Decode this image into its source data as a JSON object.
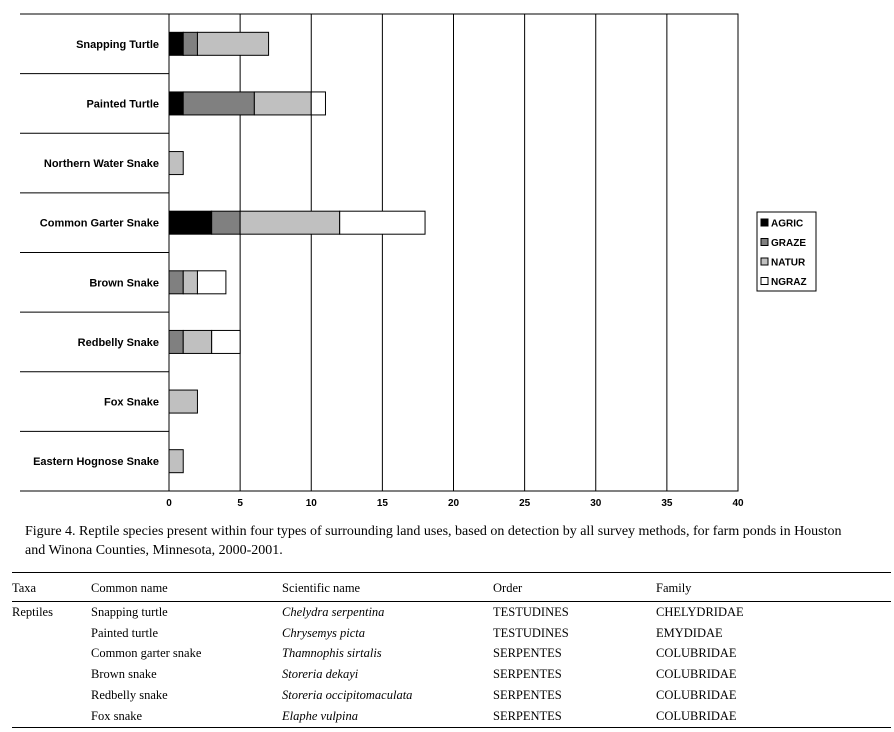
{
  "chart_data": {
    "type": "bar",
    "orientation": "horizontal",
    "stacked": true,
    "categories": [
      "Snapping Turtle",
      "Painted Turtle",
      "Northern Water Snake",
      "Common Garter Snake",
      "Brown Snake",
      "Redbelly Snake",
      "Fox Snake",
      "Eastern Hognose Snake"
    ],
    "series": [
      {
        "name": "AGRIC",
        "color": "#000000",
        "values": [
          1,
          1,
          0,
          3,
          0,
          0,
          0,
          0
        ]
      },
      {
        "name": "GRAZE",
        "color": "#808080",
        "values": [
          1,
          5,
          0,
          2,
          1,
          1,
          0,
          0
        ]
      },
      {
        "name": "NATUR",
        "color": "#c0c0c0",
        "values": [
          5,
          4,
          1,
          7,
          1,
          2,
          2,
          1
        ]
      },
      {
        "name": "NGRAZ",
        "color": "#ffffff",
        "values": [
          0,
          1,
          0,
          6,
          2,
          2,
          0,
          0
        ]
      }
    ],
    "xticks": [
      "0",
      "5",
      "10",
      "15",
      "20",
      "25",
      "30",
      "35",
      "40"
    ],
    "xlim": [
      0,
      40
    ],
    "grid": "vertical",
    "legend_position": "right",
    "title": "",
    "xlabel": "",
    "ylabel": ""
  },
  "caption": "Figure 4.  Reptile species present within four types of surrounding land uses, based on detection by all survey methods, for farm ponds in Houston and Winona Counties, Minnesota, 2000-2001.",
  "table": {
    "headers": {
      "taxa": "Taxa",
      "common": "Common name",
      "scientific": "Scientific name",
      "order": "Order",
      "family": "Family"
    },
    "rows": [
      {
        "taxa": "Reptiles",
        "common": "Snapping turtle",
        "scientific": "Chelydra serpentina",
        "order": "TESTUDINES",
        "family": "CHELYDRIDAE"
      },
      {
        "taxa": "",
        "common": "Painted turtle",
        "scientific": "Chrysemys picta",
        "order": "TESTUDINES",
        "family": "EMYDIDAE"
      },
      {
        "taxa": "",
        "common": "Common garter snake",
        "scientific": "Thamnophis sirtalis",
        "order": "SERPENTES",
        "family": "COLUBRIDAE"
      },
      {
        "taxa": "",
        "common": "Brown snake",
        "scientific": "Storeria dekayi",
        "order": "SERPENTES",
        "family": "COLUBRIDAE"
      },
      {
        "taxa": "",
        "common": "Redbelly snake",
        "scientific": "Storeria occipitomaculata",
        "order": "SERPENTES",
        "family": "COLUBRIDAE"
      },
      {
        "taxa": "",
        "common": "Fox snake",
        "scientific": "Elaphe vulpina",
        "order": "SERPENTES",
        "family": "COLUBRIDAE"
      }
    ]
  }
}
